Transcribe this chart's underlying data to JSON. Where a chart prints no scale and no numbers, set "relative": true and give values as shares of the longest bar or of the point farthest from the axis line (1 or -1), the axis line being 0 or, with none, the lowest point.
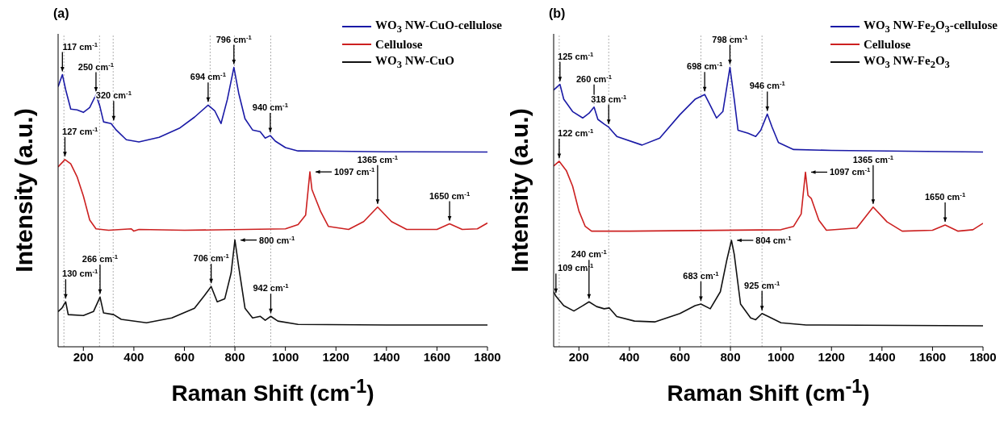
{
  "chart_data": [
    {
      "type": "line",
      "title": "(a)",
      "xlabel": "Raman Shift (cm$^{-1}$)",
      "ylabel": "Intensity (a.u.)",
      "relative": true,
      "xlim": [
        100,
        1800
      ],
      "xticks": [
        200,
        400,
        600,
        800,
        1000,
        1200,
        1400,
        1600,
        1800
      ],
      "legend": "top right",
      "grid": false,
      "marker": "none",
      "line_style": "solid",
      "series": [
        {
          "name": "WO$_{3}$ NW-CuO-cellulose",
          "color": "#1a1aa6",
          "x": [
            100,
            117,
            130,
            150,
            175,
            200,
            225,
            250,
            265,
            280,
            310,
            330,
            370,
            420,
            500,
            580,
            640,
            694,
            720,
            745,
            770,
            796,
            815,
            840,
            870,
            900,
            920,
            940,
            960,
            1000,
            1050,
            1200,
            1400,
            1800
          ],
          "values": [
            0.931,
            0.974,
            0.92,
            0.851,
            0.848,
            0.839,
            0.856,
            0.902,
            0.862,
            0.805,
            0.799,
            0.776,
            0.741,
            0.733,
            0.75,
            0.782,
            0.822,
            0.865,
            0.845,
            0.799,
            0.885,
            1.0,
            0.908,
            0.816,
            0.776,
            0.77,
            0.747,
            0.756,
            0.736,
            0.713,
            0.701,
            0.7,
            0.698,
            0.697
          ]
        },
        {
          "name": "Cellulose",
          "color": "#cc2020",
          "x": [
            100,
            127,
            150,
            175,
            200,
            225,
            250,
            300,
            390,
            400,
            420,
            600,
            1000,
            1050,
            1080,
            1097,
            1105,
            1115,
            1140,
            1170,
            1250,
            1310,
            1365,
            1420,
            1480,
            1600,
            1650,
            1700,
            1760,
            1800
          ],
          "values": [
            0.644,
            0.67,
            0.655,
            0.609,
            0.54,
            0.454,
            0.422,
            0.417,
            0.422,
            0.414,
            0.42,
            0.417,
            0.422,
            0.437,
            0.471,
            0.626,
            0.563,
            0.54,
            0.483,
            0.431,
            0.42,
            0.448,
            0.5,
            0.448,
            0.42,
            0.42,
            0.44,
            0.42,
            0.422,
            0.443
          ]
        },
        {
          "name": "WO$_{3}$ NW-CuO",
          "color": "#111111",
          "x": [
            100,
            115,
            130,
            140,
            200,
            240,
            266,
            280,
            320,
            350,
            450,
            550,
            640,
            680,
            706,
            730,
            760,
            785,
            800,
            815,
            840,
            870,
            900,
            920,
            942,
            970,
            1050,
            1400,
            1800
          ],
          "values": [
            0.126,
            0.138,
            0.161,
            0.115,
            0.112,
            0.126,
            0.178,
            0.121,
            0.115,
            0.098,
            0.086,
            0.103,
            0.138,
            0.184,
            0.216,
            0.161,
            0.172,
            0.264,
            0.382,
            0.287,
            0.138,
            0.103,
            0.109,
            0.095,
            0.109,
            0.092,
            0.08,
            0.078,
            0.078
          ]
        }
      ],
      "ref_lines": [
        {
          "axis": "x",
          "value": 123,
          "color": "#b0b0b0",
          "line_style": "dotted"
        },
        {
          "axis": "x",
          "value": 264,
          "color": "#b0b0b0",
          "line_style": "dotted"
        },
        {
          "axis": "x",
          "value": 318,
          "color": "#b0b0b0",
          "line_style": "dotted"
        },
        {
          "axis": "x",
          "value": 702,
          "color": "#b0b0b0",
          "line_style": "dotted"
        },
        {
          "axis": "x",
          "value": 798,
          "color": "#b0b0b0",
          "line_style": "dotted"
        },
        {
          "axis": "x",
          "value": 942,
          "color": "#b0b0b0",
          "line_style": "dotted"
        }
      ],
      "annotations": [
        {
          "text": "117 cm$^{-1}$",
          "x": 117,
          "y": 0.974
        },
        {
          "text": "250 cm$^{-1}$",
          "x": 250,
          "y": 0.902
        },
        {
          "text": "320 cm$^{-1}$",
          "x": 320,
          "y": 0.799
        },
        {
          "text": "694 cm$^{-1}$",
          "x": 694,
          "y": 0.865
        },
        {
          "text": "796 cm$^{-1}$",
          "x": 796,
          "y": 1.0
        },
        {
          "text": "940 cm$^{-1}$",
          "x": 940,
          "y": 0.756
        },
        {
          "text": "127 cm$^{-1}$",
          "x": 127,
          "y": 0.67
        },
        {
          "text": "1097 cm$^{-1}$",
          "x": 1097,
          "y": 0.626
        },
        {
          "text": "1365 cm$^{-1}$",
          "x": 1365,
          "y": 0.5
        },
        {
          "text": "1650 cm$^{-1}$",
          "x": 1650,
          "y": 0.44
        },
        {
          "text": "130 cm$^{-1}$",
          "x": 130,
          "y": 0.161
        },
        {
          "text": "266 cm$^{-1}$",
          "x": 266,
          "y": 0.178
        },
        {
          "text": "706 cm$^{-1}$",
          "x": 706,
          "y": 0.216
        },
        {
          "text": "800 cm$^{-1}$",
          "x": 800,
          "y": 0.382
        },
        {
          "text": "942 cm$^{-1}$",
          "x": 942,
          "y": 0.109
        }
      ]
    },
    {
      "type": "line",
      "title": "(b)",
      "xlabel": "Raman Shift (cm$^{-1}$)",
      "ylabel": "Intensity (a.u.)",
      "relative": true,
      "xlim": [
        100,
        1800
      ],
      "xticks": [
        200,
        400,
        600,
        800,
        1000,
        1200,
        1400,
        1600,
        1800
      ],
      "legend": "top right",
      "grid": false,
      "marker": "none",
      "line_style": "solid",
      "series": [
        {
          "name": "WO$_{3}$ NW-Fe$_{2}$O$_{3}$-cellulose",
          "color": "#1a1aa6",
          "x": [
            100,
            125,
            140,
            175,
            215,
            240,
            260,
            275,
            300,
            318,
            350,
            450,
            520,
            600,
            660,
            698,
            720,
            745,
            770,
            798,
            815,
            830,
            870,
            900,
            920,
            946,
            965,
            990,
            1050,
            1200,
            1800
          ],
          "values": [
            0.919,
            0.939,
            0.886,
            0.842,
            0.819,
            0.836,
            0.858,
            0.814,
            0.797,
            0.786,
            0.753,
            0.722,
            0.747,
            0.831,
            0.886,
            0.903,
            0.864,
            0.819,
            0.842,
            1.0,
            0.886,
            0.775,
            0.764,
            0.753,
            0.775,
            0.833,
            0.786,
            0.731,
            0.706,
            0.703,
            0.697
          ]
        },
        {
          "name": "Cellulose",
          "color": "#cc2020",
          "x": [
            100,
            122,
            150,
            175,
            200,
            225,
            250,
            400,
            1000,
            1050,
            1080,
            1097,
            1107,
            1120,
            1150,
            1180,
            1300,
            1365,
            1420,
            1480,
            1600,
            1650,
            1700,
            1760,
            1800
          ],
          "values": [
            0.647,
            0.664,
            0.631,
            0.575,
            0.486,
            0.431,
            0.414,
            0.414,
            0.419,
            0.431,
            0.475,
            0.625,
            0.542,
            0.531,
            0.453,
            0.417,
            0.425,
            0.5,
            0.447,
            0.414,
            0.417,
            0.436,
            0.414,
            0.419,
            0.442
          ]
        },
        {
          "name": "WO$_{3}$ NW-Fe$_{2}$O$_{3}$",
          "color": "#111111",
          "x": [
            100,
            109,
            140,
            180,
            215,
            240,
            270,
            300,
            320,
            350,
            420,
            500,
            600,
            660,
            683,
            720,
            760,
            785,
            804,
            815,
            840,
            880,
            900,
            925,
            950,
            1000,
            1100,
            1800
          ],
          "values": [
            0.197,
            0.181,
            0.147,
            0.128,
            0.147,
            0.161,
            0.144,
            0.136,
            0.139,
            0.108,
            0.092,
            0.089,
            0.119,
            0.147,
            0.153,
            0.136,
            0.197,
            0.308,
            0.381,
            0.331,
            0.153,
            0.103,
            0.097,
            0.119,
            0.108,
            0.086,
            0.078,
            0.075
          ]
        }
      ],
      "ref_lines": [
        {
          "axis": "x",
          "value": 122,
          "color": "#b0b0b0",
          "line_style": "dotted"
        },
        {
          "axis": "x",
          "value": 318,
          "color": "#b0b0b0",
          "line_style": "dotted"
        },
        {
          "axis": "x",
          "value": 683,
          "color": "#b0b0b0",
          "line_style": "dotted"
        },
        {
          "axis": "x",
          "value": 800,
          "color": "#b0b0b0",
          "line_style": "dotted"
        },
        {
          "axis": "x",
          "value": 925,
          "color": "#b0b0b0",
          "line_style": "dotted"
        }
      ],
      "annotations": [
        {
          "text": "125 cm$^{-1}$",
          "x": 125,
          "y": 0.939
        },
        {
          "text": "260 cm$^{-1}$",
          "x": 260,
          "y": 0.858
        },
        {
          "text": "318 cm$^{-1}$",
          "x": 318,
          "y": 0.786
        },
        {
          "text": "698 cm$^{-1}$",
          "x": 698,
          "y": 0.903
        },
        {
          "text": "798 cm$^{-1}$",
          "x": 798,
          "y": 1.0
        },
        {
          "text": "946 cm$^{-1}$",
          "x": 946,
          "y": 0.833
        },
        {
          "text": "122 cm$^{-1}$",
          "x": 122,
          "y": 0.664
        },
        {
          "text": "1097 cm$^{-1}$",
          "x": 1097,
          "y": 0.625
        },
        {
          "text": "1365 cm$^{-1}$",
          "x": 1365,
          "y": 0.5
        },
        {
          "text": "1650 cm$^{-1}$",
          "x": 1650,
          "y": 0.436
        },
        {
          "text": "109 cm$^{-1}$",
          "x": 109,
          "y": 0.181
        },
        {
          "text": "240 cm$^{-1}$",
          "x": 240,
          "y": 0.161
        },
        {
          "text": "683 cm$^{-1}$",
          "x": 683,
          "y": 0.153
        },
        {
          "text": "804 cm$^{-1}$",
          "x": 804,
          "y": 0.381
        },
        {
          "text": "925 cm$^{-1}$",
          "x": 925,
          "y": 0.119
        }
      ]
    }
  ]
}
